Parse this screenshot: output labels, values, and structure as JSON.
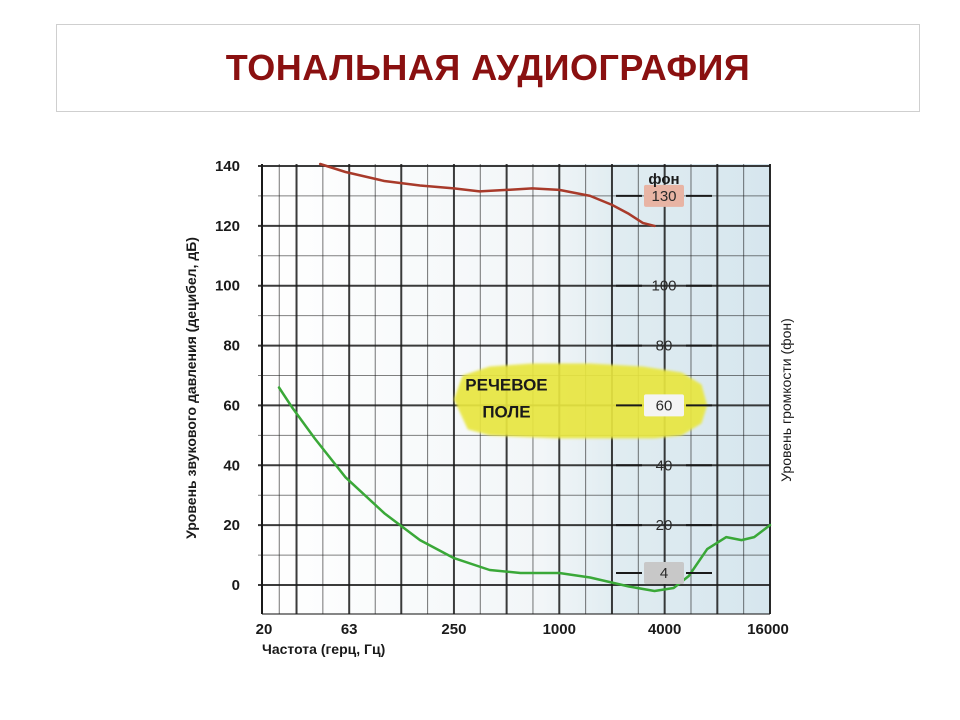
{
  "slide": {
    "title": "ТОНАЛЬНАЯ АУДИОГРАФИЯ"
  },
  "chart_data": {
    "type": "line",
    "xscale": "log",
    "xlim": [
      20,
      16000
    ],
    "ylim": [
      0,
      140
    ],
    "x_ticks": [
      20,
      63,
      250,
      1000,
      4000,
      16000
    ],
    "x_tick_labels": [
      "20",
      "63",
      "250",
      "1000",
      "4000",
      "16000"
    ],
    "y_ticks": [
      0,
      20,
      40,
      60,
      80,
      100,
      120,
      140
    ],
    "y_tick_labels": [
      "0",
      "20",
      "40",
      "60",
      "80",
      "100",
      "120",
      "140"
    ],
    "xlabel": "Частота (герц, Гц)",
    "ylabel": "Уровень звукового давления (децибел, дБ)",
    "y2label": "Уровень громкости (фон)",
    "y2_unit_label": "фон",
    "phon_ticks": [
      {
        "value": 130,
        "label": "130",
        "highlight": true
      },
      {
        "value": 100,
        "label": "100",
        "highlight": false
      },
      {
        "value": 80,
        "label": "80",
        "highlight": false
      },
      {
        "value": 60,
        "label": "60",
        "highlight": true
      },
      {
        "value": 40,
        "label": "40",
        "highlight": false
      },
      {
        "value": 20,
        "label": "20",
        "highlight": false
      },
      {
        "value": 4,
        "label": "4",
        "highlight": true
      }
    ],
    "grid": true,
    "series": [
      {
        "color": "#a83a2a",
        "x": [
          43,
          60,
          100,
          160,
          250,
          350,
          500,
          700,
          1000,
          1500,
          2000,
          2500,
          3000,
          3500
        ],
        "y": [
          141,
          138,
          135,
          133.5,
          132.5,
          131.5,
          132,
          132.5,
          132,
          130,
          127,
          124,
          121,
          120
        ]
      },
      {
        "color": "#3aa838",
        "x": [
          25,
          30,
          40,
          60,
          100,
          160,
          250,
          400,
          600,
          1000,
          1500,
          2500,
          3500,
          4500,
          5500,
          7000,
          9000,
          11000,
          13000,
          16000
        ],
        "y": [
          66,
          59,
          49,
          36,
          24,
          15,
          9,
          5,
          4,
          4,
          2.5,
          -0.5,
          -2,
          -1,
          3,
          12,
          16,
          15,
          16,
          20
        ]
      }
    ],
    "annotations": [
      {
        "text": "РЕЧЕВОЕ",
        "x": 600,
        "y": 67
      },
      {
        "text": "ПОЛЕ",
        "x": 600,
        "y": 58
      }
    ],
    "speech_field": {
      "color": "#e8e640",
      "outline_x": [
        250,
        300,
        400,
        600,
        1000,
        2000,
        3500,
        5000,
        6500,
        7000,
        6500,
        5000,
        3000,
        1500,
        700,
        400,
        280,
        250
      ],
      "outline_y": [
        62,
        52,
        50,
        49.5,
        49,
        49,
        49,
        50,
        54,
        60,
        67,
        71,
        73,
        74,
        74,
        73,
        70,
        62
      ]
    },
    "colors": {
      "grid": "#1a1a1a",
      "title": "#8a1010",
      "phon_highlight": "#e8b4a4",
      "phon_highlight_gray": "#c8c8c8"
    }
  }
}
